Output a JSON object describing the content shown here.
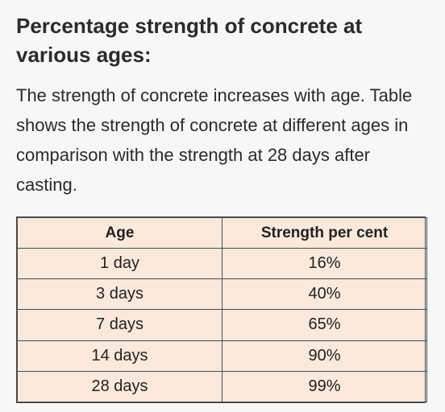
{
  "title": "Percentage strength of concrete at various ages:",
  "intro": "The strength of concrete increases with age. Table shows the strength of concrete at different ages in comparison with the strength at 28 days after casting.",
  "table": {
    "headers": [
      "Age",
      "Strength per cent"
    ],
    "rows": [
      [
        "1 day",
        "16%"
      ],
      [
        "3 days",
        "40%"
      ],
      [
        "7 days",
        "65%"
      ],
      [
        "14 days",
        "90%"
      ],
      [
        "28 days",
        "99%"
      ]
    ]
  },
  "colors": {
    "table_background": "#fbe9dc",
    "page_background": "#f7f7f7",
    "border": "#4a4a4a"
  }
}
